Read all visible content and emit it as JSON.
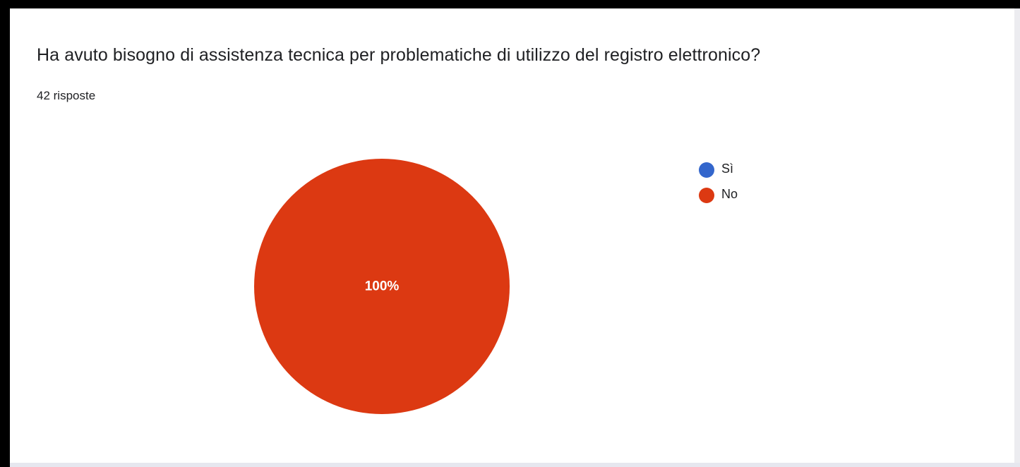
{
  "question": {
    "title": "Ha avuto bisogno di assistenza tecnica per problematiche di utilizzo del registro elettronico?",
    "response_count": "42 risposte"
  },
  "chart_data": {
    "type": "pie",
    "title": "Ha avuto bisogno di assistenza tecnica per problematiche di utilizzo del registro elettronico?",
    "categories": [
      "Sì",
      "No"
    ],
    "values": [
      0,
      100
    ],
    "slice_labels": [
      "",
      "100%"
    ],
    "colors": [
      "#3366cc",
      "#dc3912"
    ],
    "legend_position": "right"
  },
  "colors": {
    "si": "#3366cc",
    "no": "#dc3912",
    "frame": "#000000"
  }
}
